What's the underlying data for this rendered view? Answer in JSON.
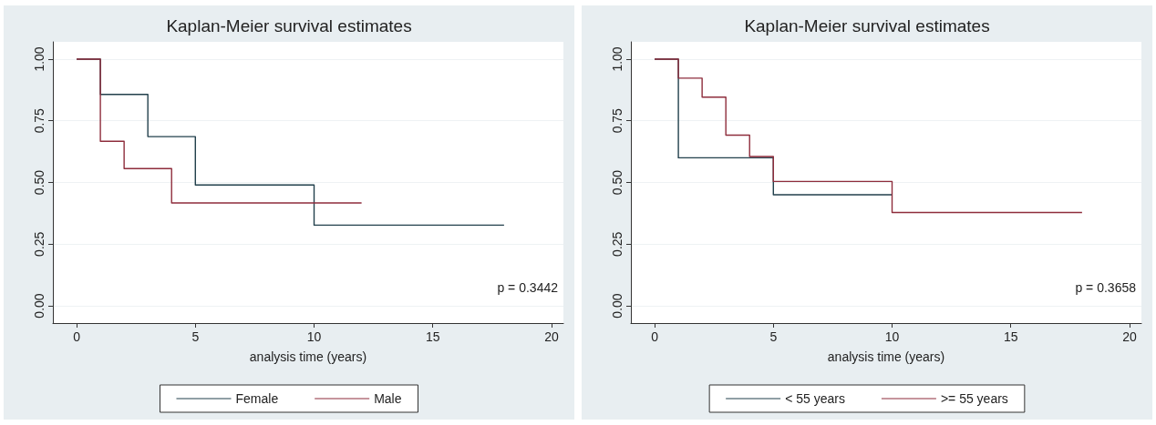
{
  "chart_data": [
    {
      "type": "step",
      "title": "Kaplan-Meier survival estimates",
      "xlabel": "analysis time (years)",
      "series": [
        {
          "name": "Female",
          "color": "#22404c",
          "x": [
            0,
            1,
            3,
            5,
            10,
            18
          ],
          "values": [
            1,
            0.857,
            0.686,
            0.49,
            0.327,
            0.327
          ]
        },
        {
          "name": "Male",
          "color": "#8e2d3c",
          "x": [
            0,
            1,
            2,
            4,
            12
          ],
          "values": [
            1,
            0.667,
            0.556,
            0.417,
            0.417
          ]
        }
      ],
      "xlim": [
        -1,
        20.5
      ],
      "xticks": [
        0,
        5,
        10,
        15,
        20
      ],
      "ylim": [
        -0.07,
        1.07
      ],
      "yticks": [
        {
          "value": 0,
          "label": "0.00"
        },
        {
          "value": 0.25,
          "label": "0.25"
        },
        {
          "value": 0.5,
          "label": "0.50"
        },
        {
          "value": 0.75,
          "label": "0.75"
        },
        {
          "value": 1,
          "label": "1.00"
        }
      ],
      "grid": "y",
      "legend": "bottom",
      "marker": "none",
      "line_style": "solid",
      "annotations": [
        "p = 0.3442"
      ]
    },
    {
      "type": "step",
      "title": "Kaplan-Meier survival estimates",
      "xlabel": "analysis time (years)",
      "series": [
        {
          "name": "< 55 years",
          "color": "#22404c",
          "x": [
            0,
            1,
            5,
            10
          ],
          "values": [
            1,
            0.6,
            0.45,
            0.45
          ]
        },
        {
          "name": ">= 55 years",
          "color": "#8e2d3c",
          "x": [
            0,
            1,
            2,
            3,
            4,
            5,
            10,
            18
          ],
          "values": [
            1,
            0.923,
            0.846,
            0.692,
            0.605,
            0.504,
            0.378,
            0.378
          ]
        }
      ],
      "xlim": [
        -1,
        20.5
      ],
      "xticks": [
        0,
        5,
        10,
        15,
        20
      ],
      "ylim": [
        -0.07,
        1.07
      ],
      "yticks": [
        {
          "value": 0,
          "label": "0.00"
        },
        {
          "value": 0.25,
          "label": "0.25"
        },
        {
          "value": 0.5,
          "label": "0.50"
        },
        {
          "value": 0.75,
          "label": "0.75"
        },
        {
          "value": 1,
          "label": "1.00"
        }
      ],
      "grid": "y",
      "legend": "bottom",
      "marker": "none",
      "line_style": "solid",
      "annotations": [
        "p = 0.3658"
      ]
    }
  ]
}
